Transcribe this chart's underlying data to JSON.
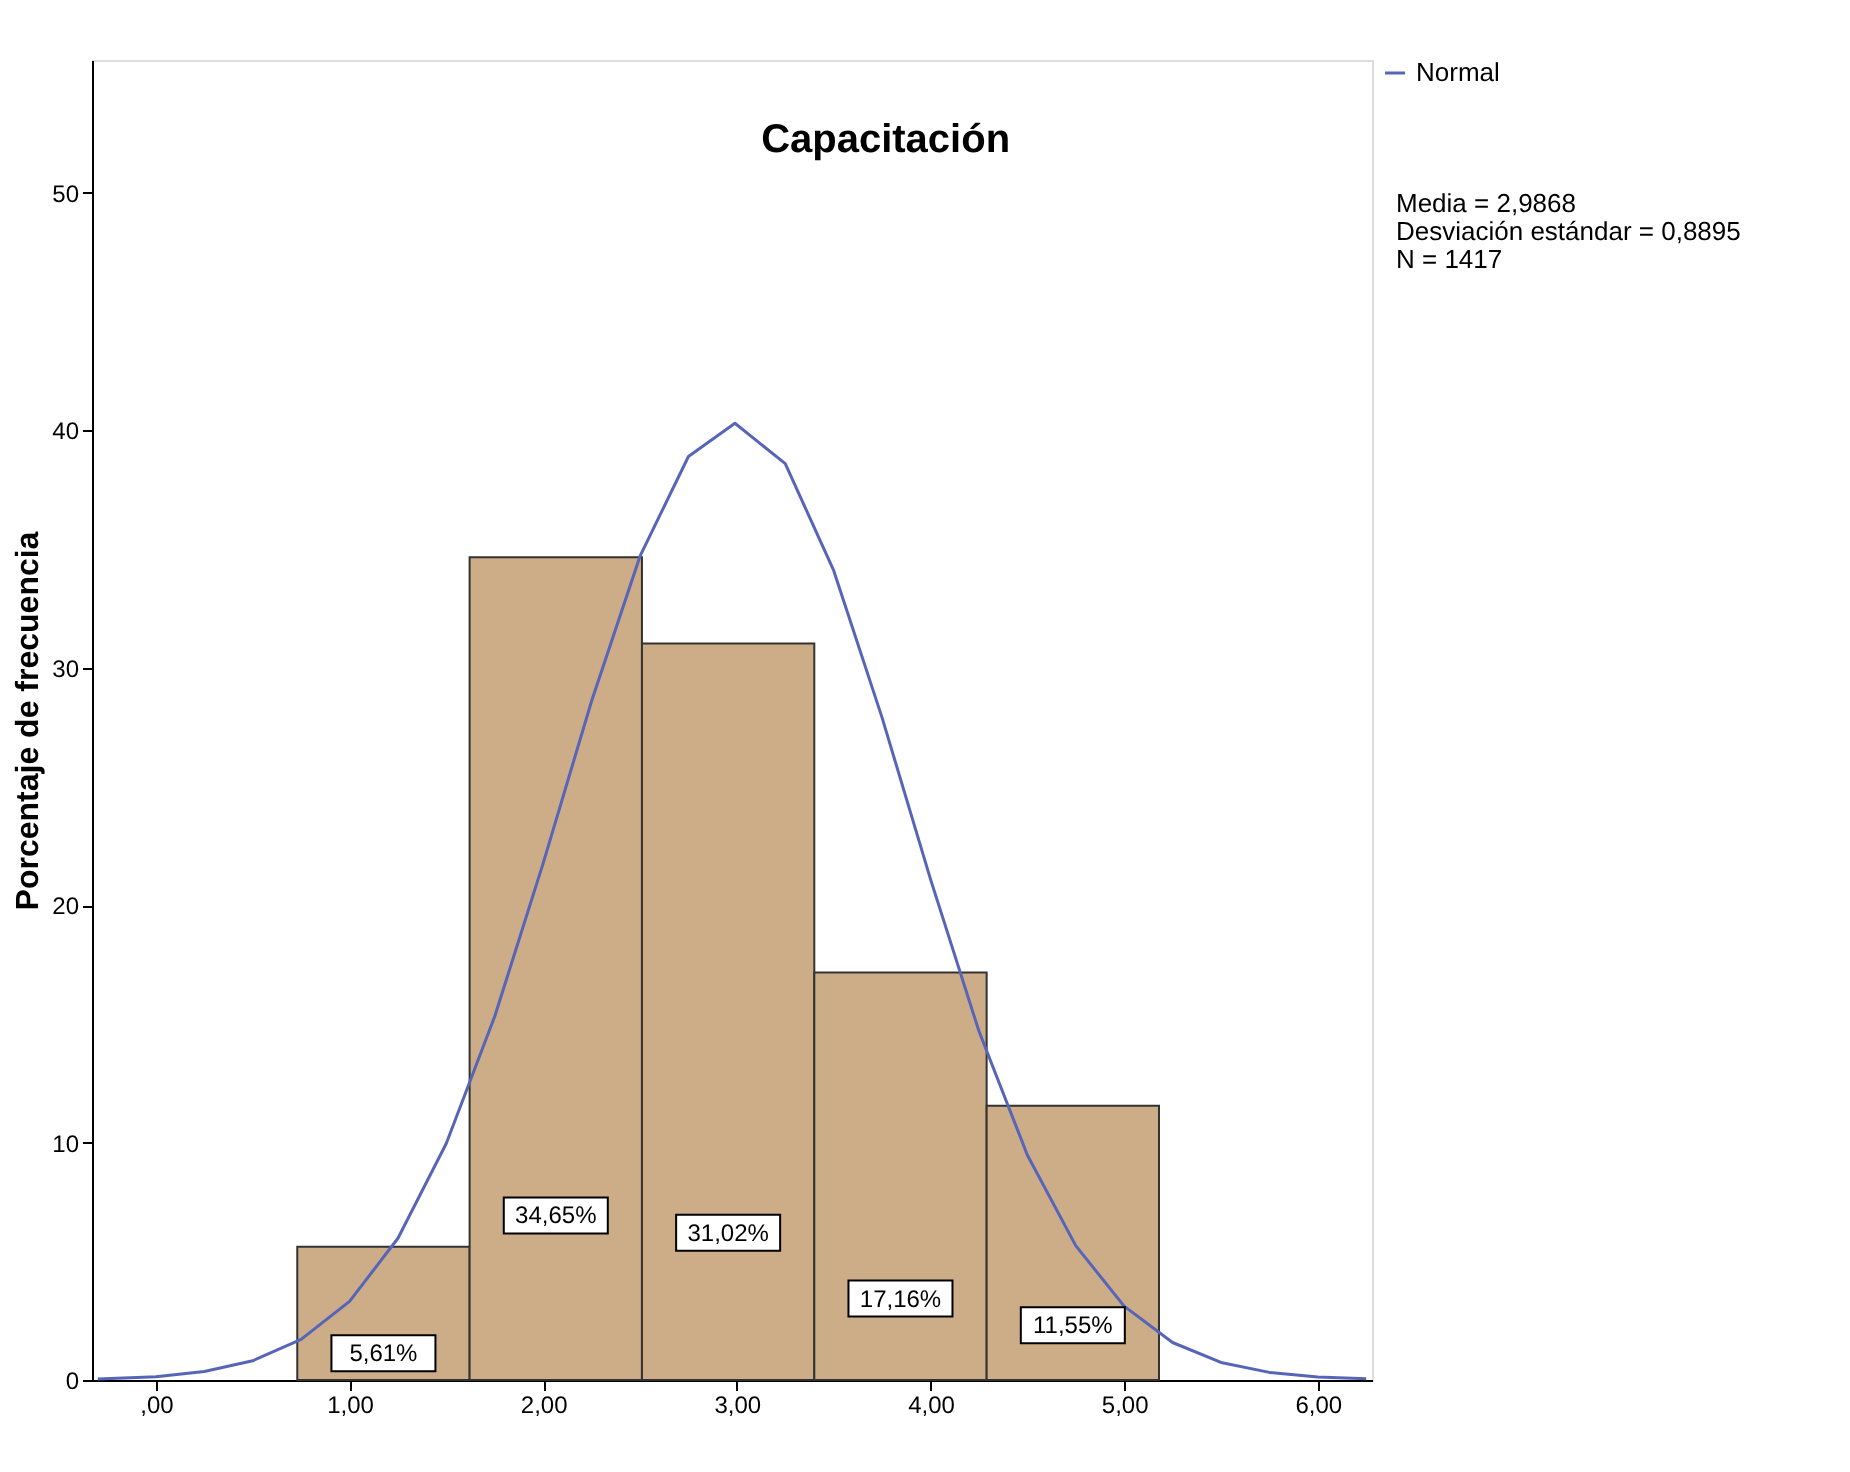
{
  "chart_data": {
    "type": "histogram",
    "title": "Capacitación",
    "ylabel": "Porcentaje de frecuencia",
    "bins": [
      0.73,
      1.62,
      2.51,
      3.4,
      4.29,
      5.18
    ],
    "values": [
      5.61,
      34.65,
      31.02,
      17.16,
      11.55
    ],
    "color": "#ccad88",
    "value_labels": [
      "5,61%",
      "34,65%",
      "31,02%",
      "17,16%",
      "11,55%"
    ],
    "series": [
      {
        "name": "Normal",
        "type": "line",
        "color": "#5665b8",
        "x": [
          -0.3,
          0.0,
          0.25,
          0.5,
          0.75,
          1.0,
          1.25,
          1.5,
          1.75,
          2.0,
          2.25,
          2.5,
          2.75,
          2.99,
          3.25,
          3.5,
          3.75,
          4.0,
          4.25,
          4.5,
          4.75,
          5.0,
          5.25,
          5.5,
          5.75,
          6.0,
          6.25
        ],
        "values": [
          0.04,
          0.14,
          0.36,
          0.81,
          1.71,
          3.31,
          5.97,
          9.97,
          15.32,
          21.77,
          28.6,
          34.7,
          38.9,
          40.3,
          38.6,
          34.1,
          27.9,
          21.1,
          14.7,
          9.48,
          5.66,
          3.11,
          1.58,
          0.74,
          0.32,
          0.13,
          0.05
        ]
      }
    ],
    "xlim": [
      -0.33,
      6.28
    ],
    "ylim": [
      0,
      55.6
    ],
    "xticks": [
      {
        "value": 0,
        "label": ",00"
      },
      {
        "value": 1,
        "label": "1,00"
      },
      {
        "value": 2,
        "label": "2,00"
      },
      {
        "value": 3,
        "label": "3,00"
      },
      {
        "value": 4,
        "label": "4,00"
      },
      {
        "value": 5,
        "label": "5,00"
      },
      {
        "value": 6,
        "label": "6,00"
      }
    ],
    "yticks": [
      0,
      10,
      20,
      30,
      40,
      50
    ],
    "grid": false,
    "legend": "top right",
    "annotations": [
      "Media = 2,9868",
      "Desviación estándar = 0,8895",
      "N = 1417"
    ]
  }
}
